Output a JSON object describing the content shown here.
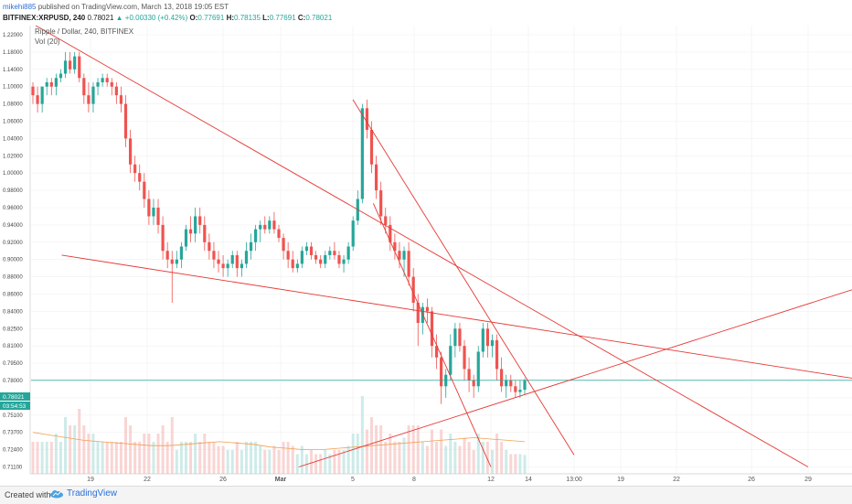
{
  "header": {
    "username": "mikehi885",
    "published_text": "published on TradingView.com, March 13, 2018 19:05 EST",
    "symbol": "BITFINEX:XRPUSD, 240",
    "last": "0.78021",
    "change": "▲ +0.00330 (+0.42%)",
    "o_label": "O:",
    "o_value": "0.77691",
    "h_label": "H:",
    "h_value": "0.78135",
    "l_label": "L:",
    "l_value": "0.77691",
    "c_label": "C:",
    "c_value": "0.78021"
  },
  "footer": {
    "created_with": "Created with",
    "brand": "TradingView",
    "logo_icon": "tradingview-cloud-icon"
  },
  "colors": {
    "up": "#26a69a",
    "down": "#ef5350",
    "trendline": "#e53935",
    "vol_ma": "#f0a050",
    "grid": "#f0f0f0",
    "price_line": "#26a69a"
  },
  "chart_data": {
    "type": "candlestick",
    "title": "Ripple / Dollar, 240, BITFINEX",
    "indicator": "Vol (20)",
    "price_axis": {
      "ticks": [
        "1.22000",
        "1.18000",
        "1.14000",
        "1.10000",
        "1.08000",
        "1.06000",
        "1.04000",
        "1.02000",
        "1.00000",
        "0.98000",
        "0.96000",
        "0.94000",
        "0.92000",
        "0.90000",
        "0.88000",
        "0.86000",
        "0.84000",
        "0.82500",
        "0.81000",
        "0.79500",
        "0.78000",
        "0.76500",
        "0.75100",
        "0.73700",
        "0.72400",
        "0.71100"
      ],
      "current_price": "0.78021",
      "countdown": "03:54:53"
    },
    "time_axis": {
      "ticks": [
        "19",
        "22",
        "26",
        "Mar",
        "5",
        "8",
        "12",
        "14",
        "13:00",
        "19",
        "22",
        "26",
        "29"
      ]
    },
    "candles": [
      [
        1.1,
        1.11,
        1.08,
        1.09
      ],
      [
        1.09,
        1.1,
        1.07,
        1.08
      ],
      [
        1.08,
        1.1,
        1.07,
        1.1
      ],
      [
        1.1,
        1.12,
        1.09,
        1.11
      ],
      [
        1.11,
        1.12,
        1.09,
        1.1
      ],
      [
        1.1,
        1.13,
        1.09,
        1.12
      ],
      [
        1.12,
        1.14,
        1.11,
        1.13
      ],
      [
        1.13,
        1.18,
        1.12,
        1.16
      ],
      [
        1.16,
        1.18,
        1.13,
        1.14
      ],
      [
        1.14,
        1.18,
        1.13,
        1.17
      ],
      [
        1.17,
        1.18,
        1.11,
        1.12
      ],
      [
        1.12,
        1.13,
        1.08,
        1.09
      ],
      [
        1.09,
        1.11,
        1.07,
        1.08
      ],
      [
        1.08,
        1.11,
        1.07,
        1.1
      ],
      [
        1.1,
        1.12,
        1.09,
        1.11
      ],
      [
        1.11,
        1.13,
        1.1,
        1.12
      ],
      [
        1.12,
        1.13,
        1.1,
        1.11
      ],
      [
        1.11,
        1.12,
        1.09,
        1.1
      ],
      [
        1.1,
        1.11,
        1.08,
        1.09
      ],
      [
        1.09,
        1.1,
        1.07,
        1.08
      ],
      [
        1.08,
        1.09,
        1.03,
        1.04
      ],
      [
        1.04,
        1.05,
        1.0,
        1.01
      ],
      [
        1.01,
        1.02,
        0.99,
        1.0
      ],
      [
        1.0,
        1.01,
        0.98,
        0.99
      ],
      [
        0.99,
        1.0,
        0.96,
        0.97
      ],
      [
        0.97,
        0.98,
        0.94,
        0.95
      ],
      [
        0.95,
        0.97,
        0.94,
        0.96
      ],
      [
        0.96,
        0.97,
        0.93,
        0.94
      ],
      [
        0.94,
        0.95,
        0.9,
        0.91
      ],
      [
        0.91,
        0.92,
        0.89,
        0.9
      ],
      [
        0.9,
        0.91,
        0.85,
        0.895
      ],
      [
        0.895,
        0.91,
        0.89,
        0.9
      ],
      [
        0.9,
        0.92,
        0.89,
        0.915
      ],
      [
        0.915,
        0.94,
        0.91,
        0.935
      ],
      [
        0.935,
        0.95,
        0.92,
        0.93
      ],
      [
        0.93,
        0.96,
        0.92,
        0.95
      ],
      [
        0.95,
        0.96,
        0.93,
        0.94
      ],
      [
        0.94,
        0.95,
        0.91,
        0.92
      ],
      [
        0.92,
        0.93,
        0.9,
        0.91
      ],
      [
        0.91,
        0.92,
        0.89,
        0.9
      ],
      [
        0.9,
        0.91,
        0.885,
        0.895
      ],
      [
        0.895,
        0.905,
        0.88,
        0.89
      ],
      [
        0.89,
        0.9,
        0.88,
        0.895
      ],
      [
        0.895,
        0.91,
        0.89,
        0.905
      ],
      [
        0.905,
        0.91,
        0.88,
        0.89
      ],
      [
        0.89,
        0.9,
        0.88,
        0.895
      ],
      [
        0.895,
        0.92,
        0.89,
        0.91
      ],
      [
        0.91,
        0.93,
        0.9,
        0.92
      ],
      [
        0.92,
        0.94,
        0.91,
        0.935
      ],
      [
        0.935,
        0.945,
        0.92,
        0.94
      ],
      [
        0.94,
        0.95,
        0.93,
        0.935
      ],
      [
        0.935,
        0.95,
        0.93,
        0.945
      ],
      [
        0.945,
        0.955,
        0.93,
        0.935
      ],
      [
        0.935,
        0.94,
        0.92,
        0.925
      ],
      [
        0.925,
        0.93,
        0.9,
        0.91
      ],
      [
        0.91,
        0.92,
        0.89,
        0.9
      ],
      [
        0.9,
        0.91,
        0.885,
        0.89
      ],
      [
        0.89,
        0.9,
        0.885,
        0.895
      ],
      [
        0.895,
        0.915,
        0.89,
        0.91
      ],
      [
        0.91,
        0.92,
        0.905,
        0.915
      ],
      [
        0.915,
        0.92,
        0.9,
        0.905
      ],
      [
        0.905,
        0.91,
        0.895,
        0.9
      ],
      [
        0.9,
        0.905,
        0.89,
        0.895
      ],
      [
        0.895,
        0.91,
        0.89,
        0.905
      ],
      [
        0.905,
        0.915,
        0.9,
        0.91
      ],
      [
        0.91,
        0.92,
        0.9,
        0.905
      ],
      [
        0.905,
        0.91,
        0.89,
        0.895
      ],
      [
        0.895,
        0.905,
        0.885,
        0.9
      ],
      [
        0.9,
        0.92,
        0.895,
        0.915
      ],
      [
        0.915,
        0.95,
        0.91,
        0.945
      ],
      [
        0.945,
        0.98,
        0.94,
        0.97
      ],
      [
        0.97,
        1.08,
        0.965,
        1.075
      ],
      [
        1.075,
        1.085,
        1.04,
        1.05
      ],
      [
        1.05,
        1.06,
        1.0,
        1.01
      ],
      [
        1.01,
        1.02,
        0.97,
        0.98
      ],
      [
        0.98,
        0.99,
        0.94,
        0.95
      ],
      [
        0.95,
        0.96,
        0.93,
        0.94
      ],
      [
        0.94,
        0.95,
        0.91,
        0.92
      ],
      [
        0.92,
        0.93,
        0.9,
        0.91
      ],
      [
        0.91,
        0.92,
        0.89,
        0.9
      ],
      [
        0.9,
        0.915,
        0.88,
        0.91
      ],
      [
        0.91,
        0.92,
        0.87,
        0.88
      ],
      [
        0.88,
        0.89,
        0.84,
        0.85
      ],
      [
        0.85,
        0.86,
        0.81,
        0.83
      ],
      [
        0.83,
        0.85,
        0.82,
        0.845
      ],
      [
        0.845,
        0.855,
        0.83,
        0.84
      ],
      [
        0.84,
        0.845,
        0.8,
        0.81
      ],
      [
        0.81,
        0.82,
        0.79,
        0.8
      ],
      [
        0.8,
        0.805,
        0.76,
        0.775
      ],
      [
        0.775,
        0.79,
        0.765,
        0.785
      ],
      [
        0.785,
        0.82,
        0.78,
        0.81
      ],
      [
        0.81,
        0.83,
        0.8,
        0.825
      ],
      [
        0.825,
        0.83,
        0.805,
        0.81
      ],
      [
        0.81,
        0.815,
        0.78,
        0.79
      ],
      [
        0.79,
        0.8,
        0.77,
        0.78
      ],
      [
        0.78,
        0.785,
        0.765,
        0.775
      ],
      [
        0.775,
        0.81,
        0.77,
        0.805
      ],
      [
        0.805,
        0.83,
        0.8,
        0.825
      ],
      [
        0.825,
        0.83,
        0.8,
        0.81
      ],
      [
        0.81,
        0.82,
        0.8,
        0.815
      ],
      [
        0.815,
        0.82,
        0.78,
        0.79
      ],
      [
        0.79,
        0.8,
        0.77,
        0.775
      ],
      [
        0.775,
        0.785,
        0.765,
        0.78
      ],
      [
        0.78,
        0.785,
        0.77,
        0.775
      ],
      [
        0.775,
        0.78,
        0.765,
        0.77
      ],
      [
        0.77,
        0.78,
        0.765,
        0.772
      ],
      [
        0.772,
        0.782,
        0.768,
        0.78
      ]
    ],
    "volume_ma": [
      0.737,
      0.735,
      0.733,
      0.731,
      0.73,
      0.729,
      0.728,
      0.727,
      0.727,
      0.728,
      0.729,
      0.73,
      0.729,
      0.728,
      0.726,
      0.725,
      0.724,
      0.724,
      0.725,
      0.726,
      0.727,
      0.728,
      0.729,
      0.73,
      0.731,
      0.732,
      0.733,
      0.732,
      0.731,
      0.73
    ],
    "trendlines": [
      {
        "name": "resistance-top",
        "from": [
          "2018-02-13",
          1.245
        ],
        "to": [
          "2018-03-29",
          0.711
        ]
      },
      {
        "name": "support-rising",
        "from": [
          "2018-03-02",
          0.711
        ],
        "to": [
          "2018-04-02",
          0.865
        ]
      },
      {
        "name": "horizontal-resistance",
        "from": [
          "2018-02-16",
          0.905
        ],
        "to": [
          "2018-04-02",
          0.782
        ]
      },
      {
        "name": "steep-down-1",
        "from": [
          "2018-03-05",
          1.085
        ],
        "to": [
          "2018-03-16",
          0.72
        ]
      },
      {
        "name": "steep-down-2",
        "from": [
          "2018-03-06",
          0.965
        ],
        "to": [
          "2018-03-12",
          0.711
        ]
      }
    ]
  }
}
